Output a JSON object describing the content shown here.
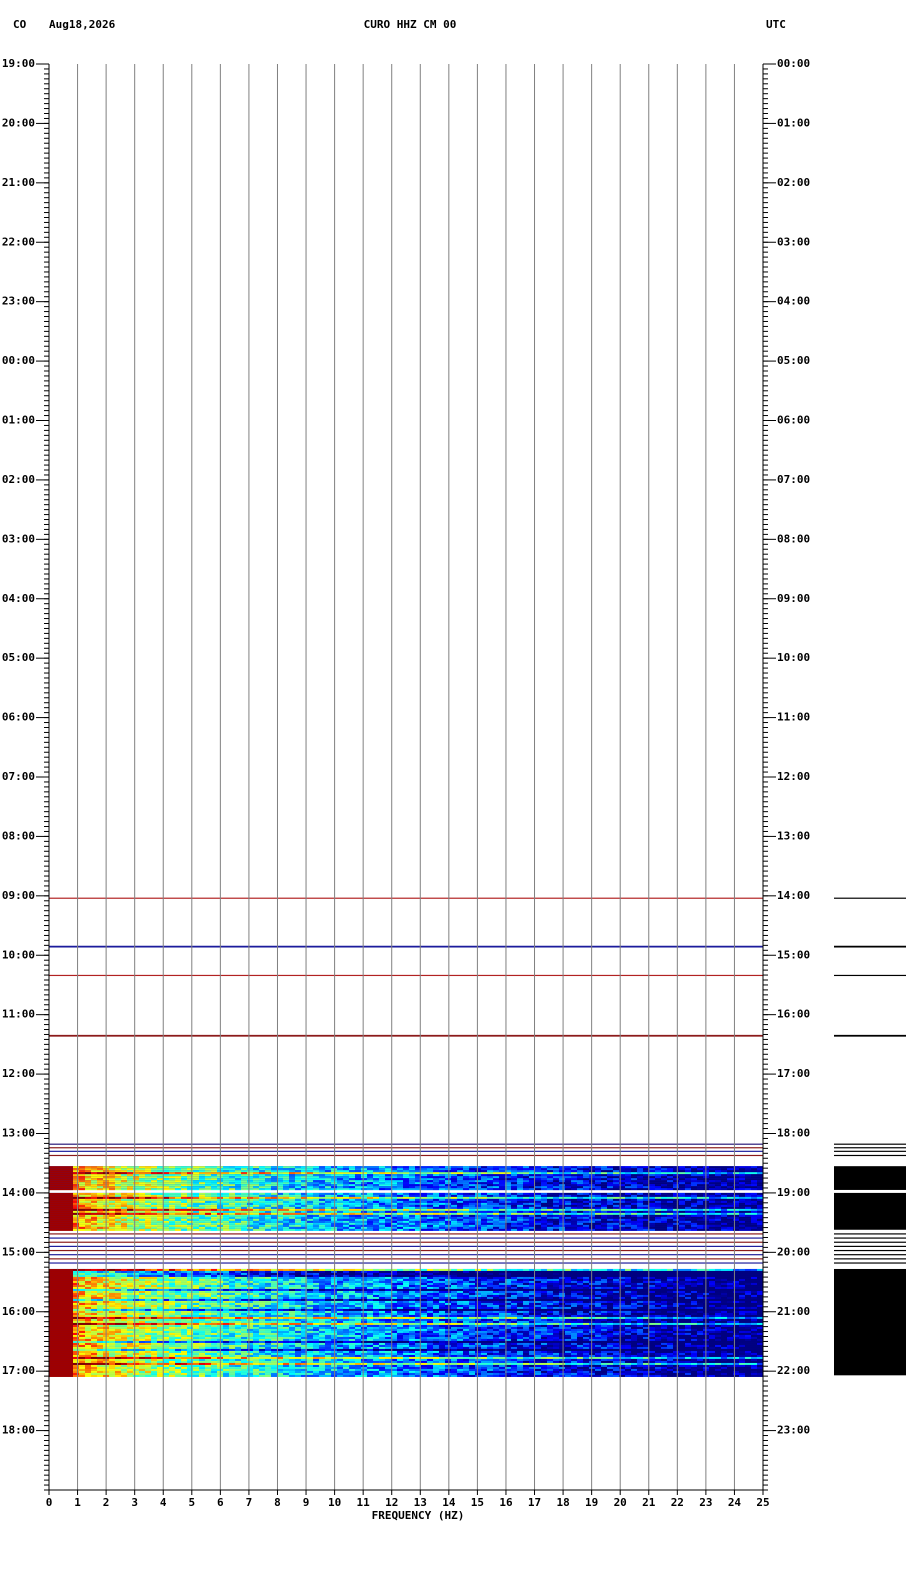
{
  "chart_data": {
    "type": "spectrogram",
    "network": "CO",
    "date": "Aug18,2026",
    "title": "CURO HHZ CM 00",
    "timezone": "UTC",
    "xlabel": "FREQUENCY (HZ)",
    "xlim": [
      0,
      25
    ],
    "xticks": [
      0,
      1,
      2,
      3,
      4,
      5,
      6,
      7,
      8,
      9,
      10,
      11,
      12,
      13,
      14,
      15,
      16,
      17,
      18,
      19,
      20,
      21,
      22,
      23,
      24,
      25
    ],
    "ylim": [
      0,
      24
    ],
    "yticks": [
      {
        "value": 0,
        "label": "19:00"
      },
      {
        "value": 1,
        "label": "20:00"
      },
      {
        "value": 2,
        "label": "21:00"
      },
      {
        "value": 3,
        "label": "22:00"
      },
      {
        "value": 4,
        "label": "23:00"
      },
      {
        "value": 5,
        "label": "00:00"
      },
      {
        "value": 6,
        "label": "01:00"
      },
      {
        "value": 7,
        "label": "02:00"
      },
      {
        "value": 8,
        "label": "03:00"
      },
      {
        "value": 9,
        "label": "04:00"
      },
      {
        "value": 10,
        "label": "05:00"
      },
      {
        "value": 11,
        "label": "06:00"
      },
      {
        "value": 12,
        "label": "07:00"
      },
      {
        "value": 13,
        "label": "08:00"
      },
      {
        "value": 14,
        "label": "09:00"
      },
      {
        "value": 15,
        "label": "10:00"
      },
      {
        "value": 16,
        "label": "11:00"
      },
      {
        "value": 17,
        "label": "12:00"
      },
      {
        "value": 18,
        "label": "13:00"
      },
      {
        "value": 19,
        "label": "14:00"
      },
      {
        "value": 20,
        "label": "15:00"
      },
      {
        "value": 21,
        "label": "16:00"
      },
      {
        "value": 22,
        "label": "17:00"
      },
      {
        "value": 23,
        "label": "18:00"
      }
    ],
    "y2lim": [
      0,
      24
    ],
    "y2ticks": [
      {
        "value": 0,
        "label": "00:00"
      },
      {
        "value": 1,
        "label": "01:00"
      },
      {
        "value": 2,
        "label": "02:00"
      },
      {
        "value": 3,
        "label": "03:00"
      },
      {
        "value": 4,
        "label": "04:00"
      },
      {
        "value": 5,
        "label": "05:00"
      },
      {
        "value": 6,
        "label": "06:00"
      },
      {
        "value": 7,
        "label": "07:00"
      },
      {
        "value": 8,
        "label": "08:00"
      },
      {
        "value": 9,
        "label": "09:00"
      },
      {
        "value": 10,
        "label": "10:00"
      },
      {
        "value": 11,
        "label": "11:00"
      },
      {
        "value": 12,
        "label": "12:00"
      },
      {
        "value": 13,
        "label": "13:00"
      },
      {
        "value": 14,
        "label": "14:00"
      },
      {
        "value": 15,
        "label": "15:00"
      },
      {
        "value": 16,
        "label": "16:00"
      },
      {
        "value": 17,
        "label": "17:00"
      },
      {
        "value": 18,
        "label": "18:00"
      },
      {
        "value": 19,
        "label": "19:00"
      },
      {
        "value": 20,
        "label": "20:00"
      },
      {
        "value": 21,
        "label": "21:00"
      },
      {
        "value": 22,
        "label": "22:00"
      },
      {
        "value": 23,
        "label": "23:00"
      }
    ],
    "traces": [
      {
        "start": 14.03,
        "end": 14.05,
        "color": "#b22222"
      },
      {
        "start": 14.84,
        "end": 14.87,
        "color": "#1c1c9c"
      },
      {
        "start": 15.33,
        "end": 15.35,
        "color": "#b22222"
      },
      {
        "start": 16.34,
        "end": 16.37,
        "color": "#8b1a1a"
      },
      {
        "start": 18.17,
        "end": 18.19,
        "color": "#2a1a7a"
      },
      {
        "start": 18.23,
        "end": 18.25,
        "color": "#8b1a1a"
      },
      {
        "start": 18.29,
        "end": 18.31,
        "color": "#1c1c9c"
      },
      {
        "start": 18.36,
        "end": 18.38,
        "color": "#8b1a1a"
      },
      {
        "start": 19.68,
        "end": 19.7,
        "color": "#8b1a1a"
      },
      {
        "start": 19.75,
        "end": 19.77,
        "color": "#1c1c9c"
      },
      {
        "start": 19.82,
        "end": 19.84,
        "color": "#8b1a1a"
      },
      {
        "start": 19.89,
        "end": 19.91,
        "color": "#1c1c9c"
      },
      {
        "start": 19.96,
        "end": 19.98,
        "color": "#8b1a1a"
      },
      {
        "start": 20.03,
        "end": 20.05,
        "color": "#1c1c9c"
      },
      {
        "start": 20.1,
        "end": 20.12,
        "color": "#8b1a1a"
      },
      {
        "start": 20.17,
        "end": 20.19,
        "color": "#1c1c9c"
      }
    ],
    "spectra": [
      {
        "start": 18.55,
        "end": 18.95
      },
      {
        "start": 19.0,
        "end": 19.62
      },
      {
        "start": 20.28,
        "end": 22.07
      }
    ]
  }
}
